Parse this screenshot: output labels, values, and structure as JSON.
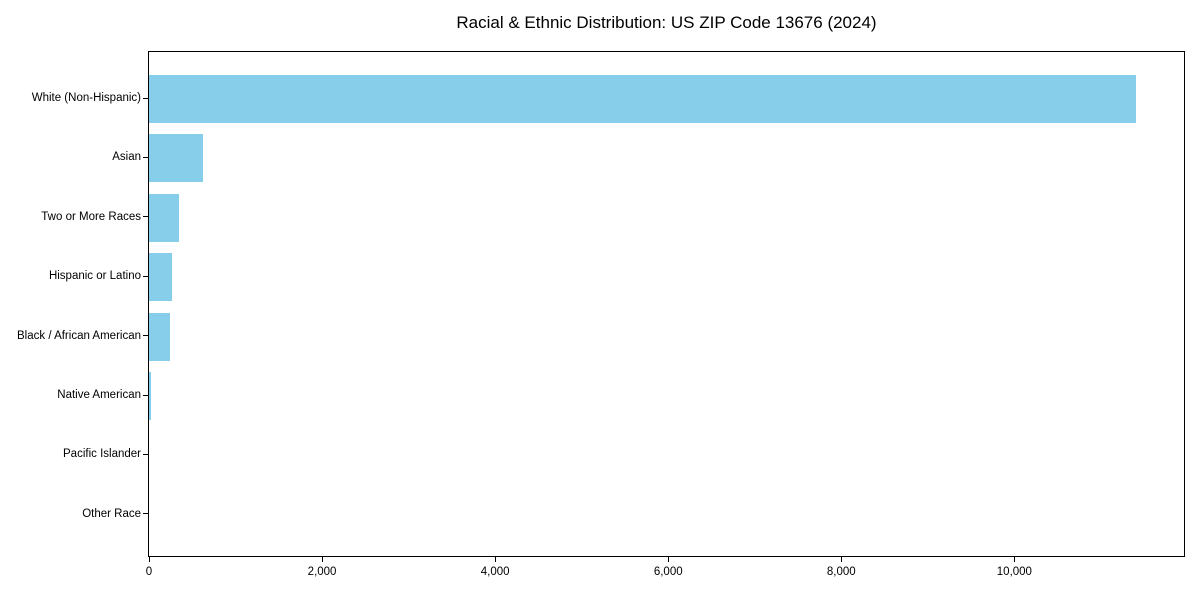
{
  "chart_data": {
    "type": "bar",
    "orientation": "horizontal",
    "title": "Racial & Ethnic Distribution: US ZIP Code 13676 (2024)",
    "categories": [
      "White (Non-Hispanic)",
      "Asian",
      "Two or More Races",
      "Hispanic or Latino",
      "Black / African American",
      "Native American",
      "Pacific Islander",
      "Other Race"
    ],
    "values": [
      11400,
      620,
      350,
      260,
      240,
      20,
      0,
      0
    ],
    "xlabel": "",
    "ylabel": "",
    "xlim": [
      0,
      11960
    ],
    "xticks": [
      0,
      2000,
      4000,
      6000,
      8000,
      10000
    ],
    "xtick_labels": [
      "0",
      "2,000",
      "4,000",
      "6,000",
      "8,000",
      "10,000"
    ],
    "grid": false,
    "legend": null,
    "bar_color": "#87CEEB",
    "spine_color": "#000000",
    "text_color": "#000000",
    "background_color": "#ffffff"
  }
}
